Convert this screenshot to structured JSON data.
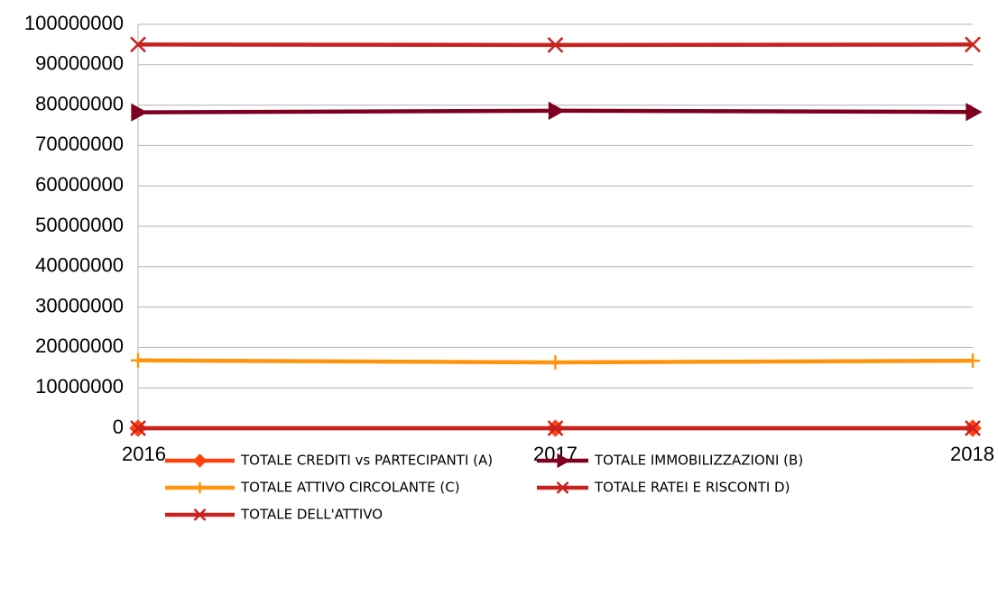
{
  "chart_data": {
    "type": "line",
    "categories": [
      "2016",
      "2017",
      "2018"
    ],
    "ylim": [
      0,
      100000000
    ],
    "yticks": [
      0,
      10000000,
      20000000,
      30000000,
      40000000,
      50000000,
      60000000,
      70000000,
      80000000,
      90000000,
      100000000
    ],
    "grid": true,
    "series": [
      {
        "name": "TOTALE CREDITI vs PARTECIPANTI (A)",
        "color": "#ff420e",
        "marker": "diamond",
        "values": [
          0,
          0,
          0
        ]
      },
      {
        "name": "TOTALE IMMOBILIZZAZIONI (B)",
        "color": "#7e0021",
        "marker": "triangle",
        "values": [
          78200000,
          78600000,
          78300000
        ]
      },
      {
        "name": "TOTALE ATTIVO CIRCOLANTE (C)",
        "color": "#ff950e",
        "marker": "plus",
        "values": [
          16800000,
          16300000,
          16700000
        ]
      },
      {
        "name": "TOTALE RATEI E RISCONTI  D)",
        "color": "#c9211e",
        "marker": "x",
        "values": [
          0,
          0,
          0
        ]
      },
      {
        "name": "TOTALE DELL'ATTIVO",
        "color": "#c9211e",
        "marker": "x",
        "values": [
          95000000,
          94900000,
          95000000
        ]
      }
    ]
  }
}
